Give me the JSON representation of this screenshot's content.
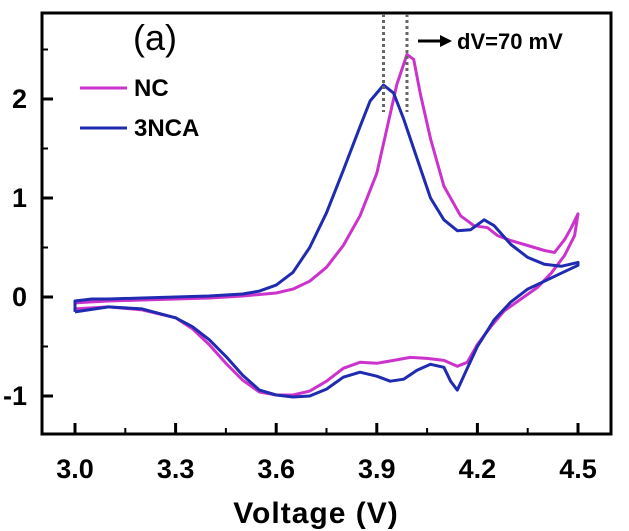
{
  "chart_data": {
    "type": "line",
    "title": "",
    "panel_label": "(a)",
    "xlabel": "Voltage  (V)",
    "ylabel": "",
    "xlim": [
      3.0,
      4.5
    ],
    "ylim": [
      -1.4,
      2.6
    ],
    "xticks": [
      3.0,
      3.3,
      3.6,
      3.9,
      4.2,
      4.5
    ],
    "xtick_labels": [
      "3.0",
      "3.3",
      "3.6",
      "3.9",
      "4.2",
      "4.5"
    ],
    "yticks": [
      -1,
      0,
      1,
      2
    ],
    "ytick_labels": [
      "-1",
      "0",
      "1",
      "2"
    ],
    "grid": false,
    "legend_position": "top-left",
    "annotation": {
      "text": "dV=70 mV",
      "peak_x": [
        3.92,
        3.99
      ]
    },
    "series": [
      {
        "name": "NC",
        "color": "#cc33cc",
        "points": [
          [
            3.0,
            -0.12
          ],
          [
            3.0,
            -0.06
          ],
          [
            3.05,
            -0.05
          ],
          [
            3.1,
            -0.04
          ],
          [
            3.2,
            -0.03
          ],
          [
            3.3,
            -0.02
          ],
          [
            3.4,
            -0.01
          ],
          [
            3.5,
            0.01
          ],
          [
            3.6,
            0.04
          ],
          [
            3.65,
            0.08
          ],
          [
            3.7,
            0.16
          ],
          [
            3.75,
            0.3
          ],
          [
            3.8,
            0.52
          ],
          [
            3.85,
            0.82
          ],
          [
            3.9,
            1.25
          ],
          [
            3.93,
            1.7
          ],
          [
            3.96,
            2.15
          ],
          [
            3.99,
            2.45
          ],
          [
            4.01,
            2.4
          ],
          [
            4.03,
            2.05
          ],
          [
            4.06,
            1.6
          ],
          [
            4.1,
            1.12
          ],
          [
            4.15,
            0.82
          ],
          [
            4.19,
            0.72
          ],
          [
            4.23,
            0.7
          ],
          [
            4.26,
            0.62
          ],
          [
            4.3,
            0.57
          ],
          [
            4.35,
            0.52
          ],
          [
            4.4,
            0.47
          ],
          [
            4.43,
            0.45
          ],
          [
            4.46,
            0.58
          ],
          [
            4.48,
            0.7
          ],
          [
            4.5,
            0.84
          ],
          [
            4.49,
            0.62
          ],
          [
            4.46,
            0.42
          ],
          [
            4.42,
            0.24
          ],
          [
            4.38,
            0.1
          ],
          [
            4.33,
            -0.02
          ],
          [
            4.28,
            -0.14
          ],
          [
            4.24,
            -0.3
          ],
          [
            4.2,
            -0.48
          ],
          [
            4.17,
            -0.66
          ],
          [
            4.14,
            -0.7
          ],
          [
            4.1,
            -0.64
          ],
          [
            4.05,
            -0.62
          ],
          [
            4.0,
            -0.61
          ],
          [
            3.95,
            -0.64
          ],
          [
            3.9,
            -0.67
          ],
          [
            3.85,
            -0.66
          ],
          [
            3.8,
            -0.72
          ],
          [
            3.75,
            -0.85
          ],
          [
            3.7,
            -0.95
          ],
          [
            3.65,
            -0.99
          ],
          [
            3.6,
            -0.99
          ],
          [
            3.55,
            -0.96
          ],
          [
            3.5,
            -0.84
          ],
          [
            3.45,
            -0.67
          ],
          [
            3.4,
            -0.48
          ],
          [
            3.35,
            -0.32
          ],
          [
            3.3,
            -0.21
          ],
          [
            3.2,
            -0.13
          ],
          [
            3.1,
            -0.1
          ],
          [
            3.0,
            -0.12
          ]
        ]
      },
      {
        "name": "3NCA",
        "color": "#1f2bb0",
        "points": [
          [
            3.0,
            -0.15
          ],
          [
            3.0,
            -0.04
          ],
          [
            3.05,
            -0.02
          ],
          [
            3.1,
            -0.02
          ],
          [
            3.2,
            -0.01
          ],
          [
            3.3,
            0.0
          ],
          [
            3.4,
            0.01
          ],
          [
            3.5,
            0.03
          ],
          [
            3.55,
            0.06
          ],
          [
            3.6,
            0.12
          ],
          [
            3.65,
            0.25
          ],
          [
            3.7,
            0.5
          ],
          [
            3.75,
            0.85
          ],
          [
            3.8,
            1.28
          ],
          [
            3.85,
            1.72
          ],
          [
            3.88,
            1.98
          ],
          [
            3.92,
            2.14
          ],
          [
            3.95,
            2.06
          ],
          [
            3.98,
            1.8
          ],
          [
            4.02,
            1.4
          ],
          [
            4.06,
            1.0
          ],
          [
            4.1,
            0.78
          ],
          [
            4.14,
            0.67
          ],
          [
            4.18,
            0.68
          ],
          [
            4.22,
            0.78
          ],
          [
            4.25,
            0.72
          ],
          [
            4.3,
            0.53
          ],
          [
            4.35,
            0.4
          ],
          [
            4.4,
            0.33
          ],
          [
            4.45,
            0.31
          ],
          [
            4.5,
            0.35
          ],
          [
            4.5,
            0.32
          ],
          [
            4.45,
            0.24
          ],
          [
            4.4,
            0.16
          ],
          [
            4.35,
            0.08
          ],
          [
            4.3,
            -0.05
          ],
          [
            4.25,
            -0.23
          ],
          [
            4.2,
            -0.5
          ],
          [
            4.17,
            -0.72
          ],
          [
            4.14,
            -0.94
          ],
          [
            4.12,
            -0.85
          ],
          [
            4.1,
            -0.71
          ],
          [
            4.06,
            -0.68
          ],
          [
            4.02,
            -0.74
          ],
          [
            3.98,
            -0.83
          ],
          [
            3.94,
            -0.85
          ],
          [
            3.9,
            -0.8
          ],
          [
            3.85,
            -0.76
          ],
          [
            3.8,
            -0.81
          ],
          [
            3.75,
            -0.93
          ],
          [
            3.7,
            -1.0
          ],
          [
            3.65,
            -1.01
          ],
          [
            3.6,
            -0.99
          ],
          [
            3.55,
            -0.94
          ],
          [
            3.5,
            -0.79
          ],
          [
            3.45,
            -0.6
          ],
          [
            3.4,
            -0.43
          ],
          [
            3.35,
            -0.3
          ],
          [
            3.3,
            -0.21
          ],
          [
            3.2,
            -0.12
          ],
          [
            3.1,
            -0.1
          ],
          [
            3.0,
            -0.15
          ]
        ]
      }
    ]
  }
}
